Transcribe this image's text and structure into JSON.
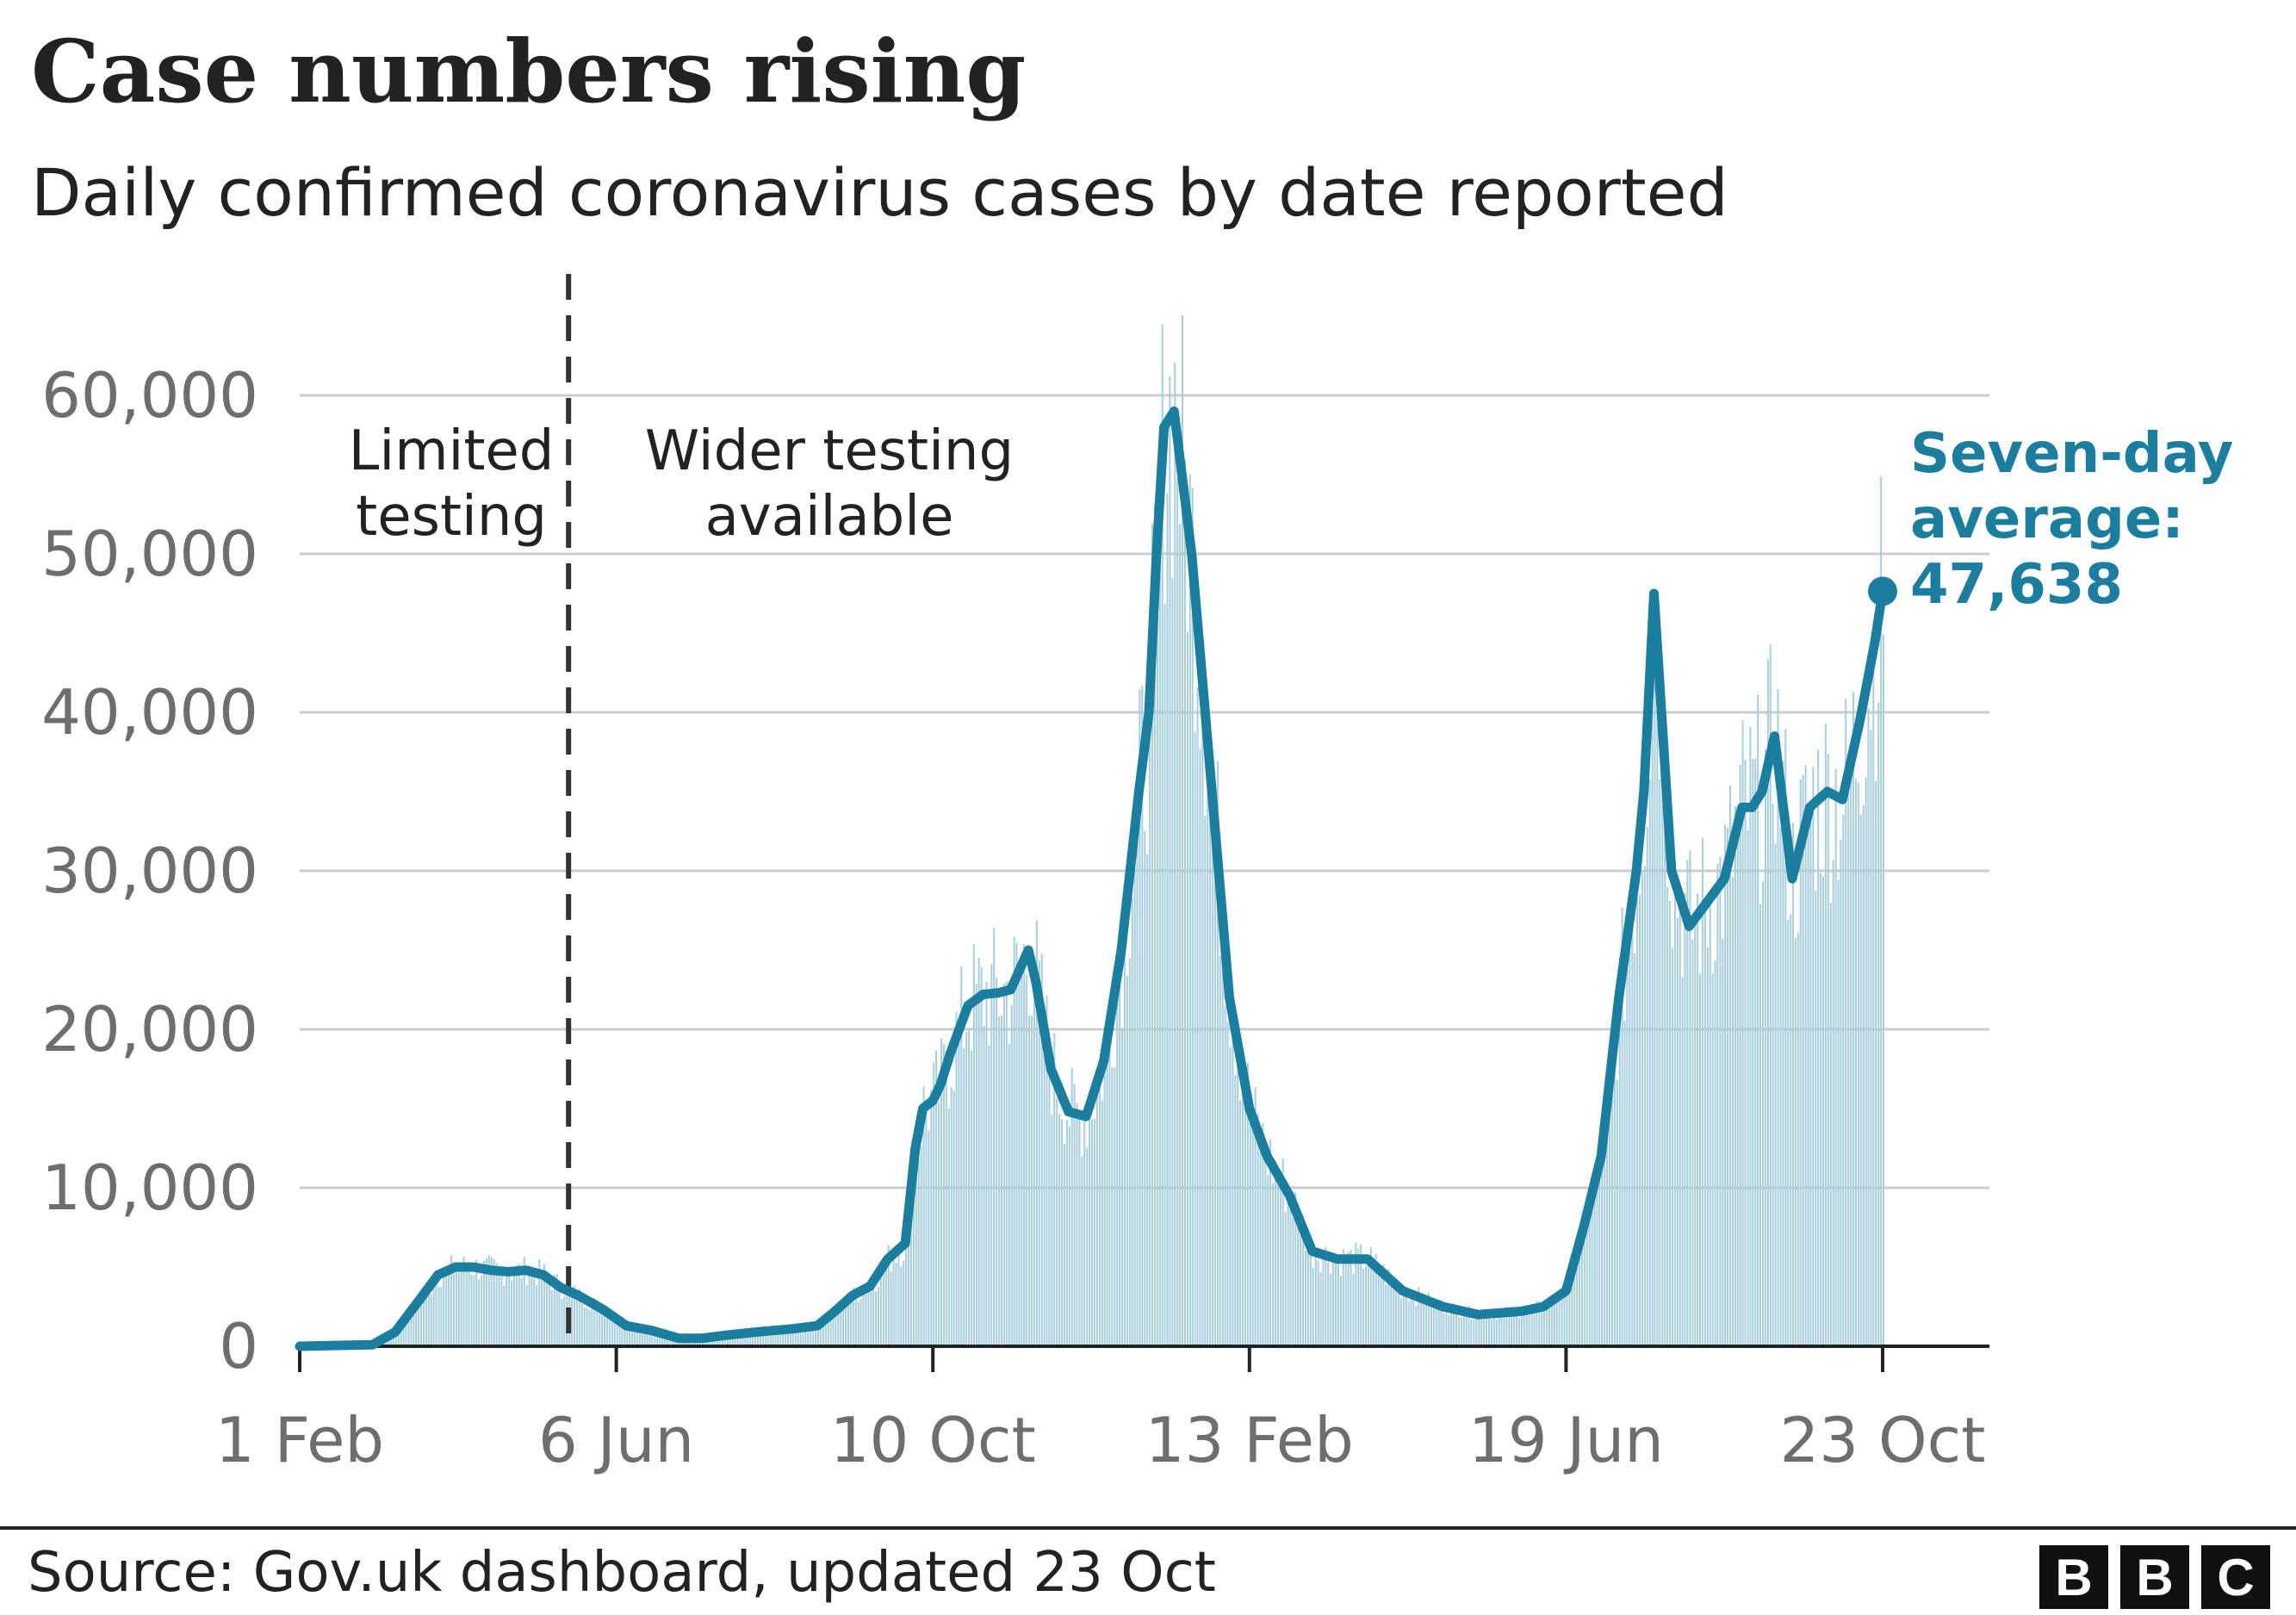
{
  "title": "Case numbers rising",
  "subtitle": "Daily confirmed coronavirus cases by date reported",
  "source": "Source: Gov.uk dashboard, updated 23 Oct",
  "logo": [
    "B",
    "B",
    "C"
  ],
  "colors": {
    "line": "#1c7e9f",
    "bars": "#a9cfdc",
    "grid": "#cccccc",
    "divider": "#333333"
  },
  "chart_data": {
    "type": "line",
    "ylim": [
      0,
      60000
    ],
    "yticks": [
      0,
      10000,
      20000,
      30000,
      40000,
      50000,
      60000
    ],
    "ytick_labels": [
      "0",
      "10,000",
      "20,000",
      "30,000",
      "40,000",
      "50,000",
      "60,000"
    ],
    "xlim": [
      "2020-02-01",
      "2021-10-23"
    ],
    "xticks": [
      "2020-02-01",
      "2020-06-06",
      "2020-10-10",
      "2021-02-13",
      "2021-06-19",
      "2021-10-23"
    ],
    "xtick_labels": [
      "1 Feb",
      "6 Jun",
      "10 Oct",
      "13 Feb",
      "19 Jun",
      "23 Oct"
    ],
    "regions": [
      {
        "label_lines": [
          "Limited",
          "testing"
        ]
      },
      {
        "label_lines": [
          "Wider testing",
          "available"
        ]
      }
    ],
    "divider_date": "2020-05-18",
    "annotation": {
      "lines": [
        "Seven-day",
        "average:",
        "47,638"
      ],
      "date": "2021-10-23",
      "value": 47638
    },
    "series": [
      {
        "x": [
          "2020-02-01",
          "2020-03-01",
          "2020-03-10",
          "2020-03-20",
          "2020-03-27",
          "2020-04-03",
          "2020-04-10",
          "2020-04-17",
          "2020-04-24",
          "2020-05-01",
          "2020-05-08",
          "2020-05-15",
          "2020-05-22",
          "2020-06-01",
          "2020-06-10",
          "2020-06-20",
          "2020-07-01",
          "2020-07-10",
          "2020-07-20",
          "2020-08-01",
          "2020-08-15",
          "2020-08-25",
          "2020-09-01",
          "2020-09-08",
          "2020-09-15",
          "2020-09-22",
          "2020-09-29",
          "2020-10-03",
          "2020-10-06",
          "2020-10-10",
          "2020-10-13",
          "2020-10-17",
          "2020-10-24",
          "2020-10-30",
          "2020-11-05",
          "2020-11-10",
          "2020-11-17",
          "2020-11-20",
          "2020-11-26",
          "2020-12-03",
          "2020-12-10",
          "2020-12-17",
          "2020-12-24",
          "2020-12-31",
          "2021-01-04",
          "2021-01-07",
          "2021-01-10",
          "2021-01-14",
          "2021-01-21",
          "2021-01-28",
          "2021-02-05",
          "2021-02-13",
          "2021-02-20",
          "2021-03-01",
          "2021-03-10",
          "2021-03-20",
          "2021-04-01",
          "2021-04-15",
          "2021-05-01",
          "2021-05-15",
          "2021-06-01",
          "2021-06-10",
          "2021-06-19",
          "2021-06-26",
          "2021-07-03",
          "2021-07-10",
          "2021-07-17",
          "2021-07-20",
          "2021-07-24",
          "2021-07-31",
          "2021-08-07",
          "2021-08-14",
          "2021-08-21",
          "2021-08-28",
          "2021-09-01",
          "2021-09-05",
          "2021-09-10",
          "2021-09-17",
          "2021-09-24",
          "2021-10-01",
          "2021-10-07",
          "2021-10-14",
          "2021-10-20",
          "2021-10-23"
        ],
        "values": [
          0,
          100,
          900,
          3000,
          4500,
          5000,
          5000,
          4800,
          4700,
          4800,
          4500,
          3700,
          3200,
          2300,
          1300,
          1000,
          500,
          500,
          700,
          900,
          1100,
          1300,
          2200,
          3200,
          3800,
          5500,
          6500,
          12500,
          15000,
          15500,
          16500,
          18500,
          21500,
          22200,
          22300,
          22500,
          25000,
          23000,
          17500,
          14800,
          14500,
          18000,
          25000,
          35000,
          40000,
          50000,
          58000,
          59000,
          50000,
          37000,
          22000,
          15000,
          12000,
          9500,
          6000,
          5500,
          5500,
          3500,
          2500,
          2000,
          2200,
          2500,
          3500,
          7500,
          12000,
          22000,
          30000,
          35000,
          47500,
          30000,
          26500,
          28000,
          29500,
          34000,
          34000,
          35000,
          38500,
          29500,
          34000,
          35000,
          34500,
          39500,
          44500,
          47638
        ]
      }
    ],
    "bars": {
      "note": "daily reported cases",
      "dates": [
        "2020-02-01",
        "2020-03-01",
        "2020-03-10",
        "2020-03-20",
        "2020-03-27",
        "2020-04-03",
        "2020-04-10",
        "2020-04-17",
        "2020-04-24",
        "2020-05-01",
        "2020-05-08",
        "2020-05-15",
        "2020-05-22",
        "2020-06-01",
        "2020-06-10",
        "2020-06-20",
        "2020-07-01",
        "2020-07-10",
        "2020-07-20",
        "2020-08-01",
        "2020-08-15",
        "2020-08-25",
        "2020-09-01",
        "2020-09-08",
        "2020-09-15",
        "2020-09-22",
        "2020-09-29",
        "2020-10-03",
        "2020-10-06",
        "2020-10-10",
        "2020-10-13",
        "2020-10-17",
        "2020-10-24",
        "2020-10-30",
        "2020-11-05",
        "2020-11-10",
        "2020-11-17",
        "2020-11-20",
        "2020-11-26",
        "2020-12-03",
        "2020-12-10",
        "2020-12-17",
        "2020-12-24",
        "2020-12-31",
        "2021-01-04",
        "2021-01-07",
        "2021-01-10",
        "2021-01-14",
        "2021-01-21",
        "2021-01-28",
        "2021-02-05",
        "2021-02-13",
        "2021-02-20",
        "2021-03-01",
        "2021-03-10",
        "2021-03-20",
        "2021-04-01",
        "2021-04-15",
        "2021-05-01",
        "2021-05-15",
        "2021-06-01",
        "2021-06-10",
        "2021-06-19",
        "2021-06-26",
        "2021-07-03",
        "2021-07-10",
        "2021-07-17",
        "2021-07-20",
        "2021-07-24",
        "2021-07-31",
        "2021-08-07",
        "2021-08-14",
        "2021-08-21",
        "2021-08-28",
        "2021-09-01",
        "2021-09-05",
        "2021-09-10",
        "2021-09-17",
        "2021-09-24",
        "2021-10-01",
        "2021-10-07",
        "2021-10-14",
        "2021-10-20",
        "2021-10-23"
      ]
    }
  }
}
